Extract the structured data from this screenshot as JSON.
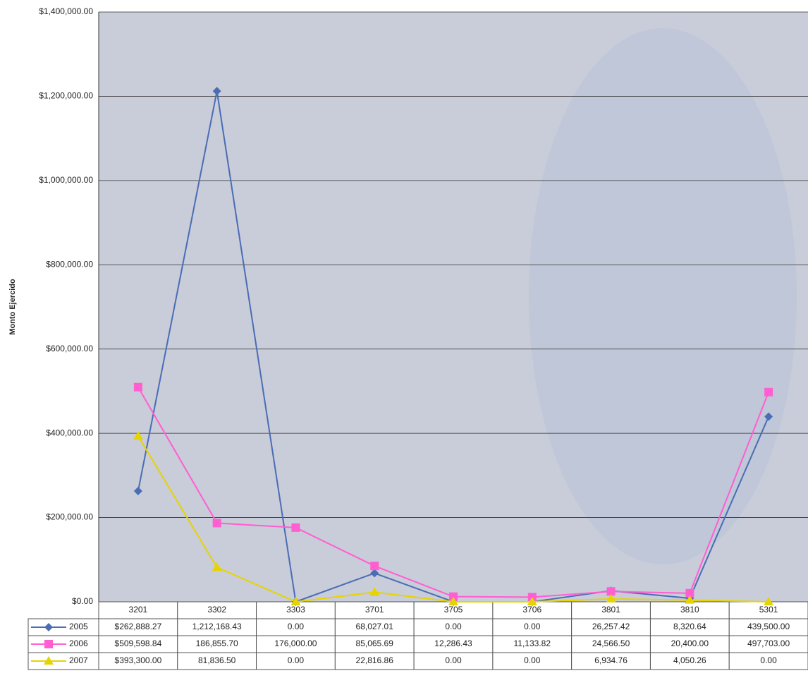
{
  "chart_data": {
    "type": "line",
    "y_label": "Monto Ejercido",
    "categories": [
      "3201",
      "3302",
      "3303",
      "3701",
      "3705",
      "3706",
      "3801",
      "3810",
      "5301"
    ],
    "series": [
      {
        "name": "2005",
        "color": "#4a6db5",
        "marker": "diamond",
        "values": [
          262888.27,
          1212168.43,
          0,
          68027.01,
          0,
          0,
          26257.42,
          8320.64,
          439500.0
        ],
        "value_labels": [
          "$262,888.27",
          "1,212,168.43",
          "0.00",
          "68,027.01",
          "0.00",
          "0.00",
          "26,257.42",
          "8,320.64",
          "439,500.00"
        ]
      },
      {
        "name": "2006",
        "color": "#ff5fd0",
        "marker": "square",
        "values": [
          509598.84,
          186855.7,
          176000.0,
          85065.69,
          12286.43,
          11133.82,
          24566.5,
          20400.0,
          497703.0
        ],
        "value_labels": [
          "$509,598.84",
          "186,855.70",
          "176,000.00",
          "85,065.69",
          "12,286.43",
          "11,133.82",
          "24,566.50",
          "20,400.00",
          "497,703.00"
        ]
      },
      {
        "name": "2007",
        "color": "#e6d400",
        "marker": "triangle",
        "values": [
          393300.0,
          81836.5,
          0,
          22816.86,
          0,
          0,
          6934.76,
          4050.26,
          0
        ],
        "value_labels": [
          "$393,300.00",
          "81,836.50",
          "0.00",
          "22,816.86",
          "0.00",
          "0.00",
          "6,934.76",
          "4,050.26",
          "0.00"
        ]
      }
    ],
    "ylim": [
      0,
      1400000
    ],
    "yticks": [
      {
        "value": 0,
        "label": "$0.00"
      },
      {
        "value": 200000,
        "label": "$200,000.00"
      },
      {
        "value": 400000,
        "label": "$400,000.00"
      },
      {
        "value": 600000,
        "label": "$600,000.00"
      },
      {
        "value": 800000,
        "label": "$800,000.00"
      },
      {
        "value": 1000000,
        "label": "$1,000,000.00"
      },
      {
        "value": 1200000,
        "label": "$1,200,000.00"
      },
      {
        "value": 1400000,
        "label": "$1,400,000.00"
      }
    ],
    "grid": true
  }
}
